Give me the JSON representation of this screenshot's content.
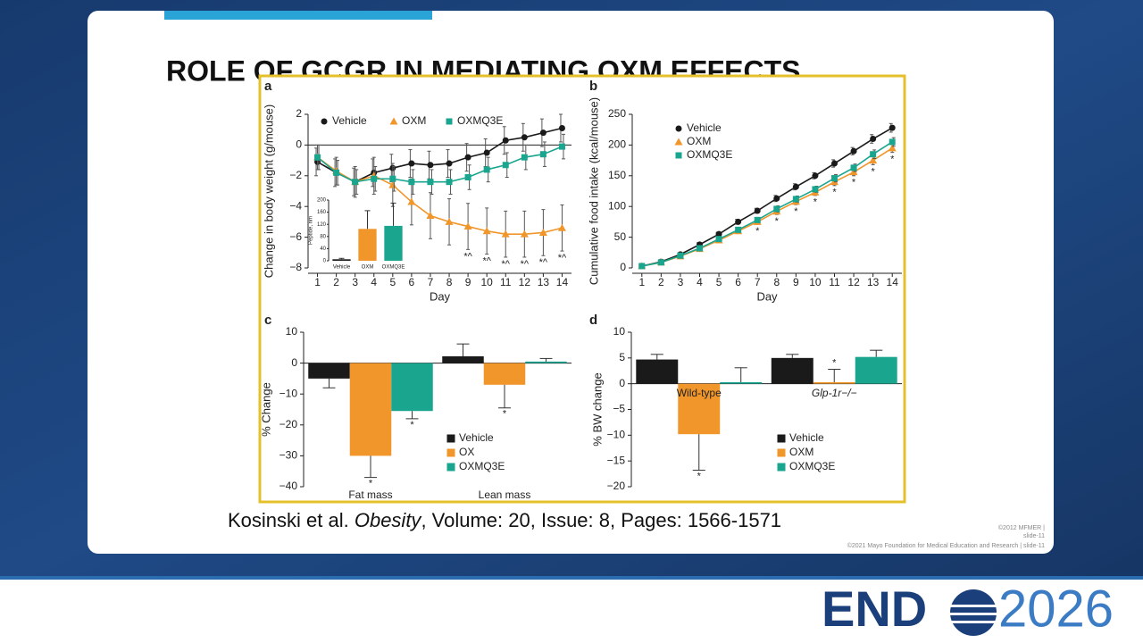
{
  "slide": {
    "title": "ROLE OF GCGR IN MEDIATING OXM EFFECTS",
    "citation": {
      "authors": "Kosinski et al. ",
      "journal": "Obesity",
      "details": ", Volume: 20, Issue: 8, Pages: 1566-1571"
    },
    "footer": [
      "©2012 MFMER  |",
      "slide-11",
      "©2021 Mayo Foundation for Medical Education and Research  |  slide-11"
    ],
    "logo": {
      "left": "END",
      "right": "2026"
    }
  },
  "chart_data": [
    {
      "panel": "a",
      "type": "line",
      "ylabel": "Change in body weight (g/mouse)",
      "xlabel": "Day",
      "x": [
        1,
        2,
        3,
        4,
        5,
        6,
        7,
        8,
        9,
        10,
        11,
        12,
        13,
        14
      ],
      "xlim": [
        0.5,
        14.5
      ],
      "ylim": [
        -8,
        2
      ],
      "yticks": [
        {
          "value": -8,
          "label": "−8"
        },
        {
          "value": -6,
          "label": "−6"
        },
        {
          "value": -4,
          "label": "−4"
        },
        {
          "value": -2,
          "label": "−2"
        },
        0,
        2
      ],
      "legend": "top",
      "series": [
        {
          "name": "Vehicle",
          "color": "#1a1a1a",
          "marker": "circle",
          "values": [
            -1.1,
            -1.8,
            -2.4,
            -1.8,
            -1.5,
            -1.2,
            -1.3,
            -1.2,
            -0.8,
            -0.5,
            0.3,
            0.5,
            0.8,
            1.1
          ],
          "errors": [
            0.9,
            0.9,
            0.9,
            0.9,
            0.9,
            0.9,
            0.9,
            0.9,
            0.9,
            0.9,
            0.9,
            0.9,
            0.9,
            0.9
          ]
        },
        {
          "name": "OXM",
          "color": "#f0962a",
          "marker": "triangle",
          "values": [
            -0.8,
            -1.7,
            -2.4,
            -2.0,
            -2.6,
            -3.7,
            -4.6,
            -5.0,
            -5.3,
            -5.6,
            -5.8,
            -5.8,
            -5.7,
            -5.4
          ],
          "errors": [
            0.8,
            0.9,
            1.0,
            1.2,
            1.4,
            1.5,
            1.5,
            1.5,
            1.5,
            1.5,
            1.5,
            1.5,
            1.5,
            1.5
          ],
          "markers": [
            null,
            null,
            null,
            null,
            null,
            null,
            null,
            null,
            "*^",
            "*^",
            "*^",
            "*^",
            "*^",
            "*^"
          ]
        },
        {
          "name": "OXMQ3E",
          "color": "#1aa58f",
          "marker": "square",
          "values": [
            -0.8,
            -1.8,
            -2.4,
            -2.2,
            -2.2,
            -2.4,
            -2.4,
            -2.4,
            -2.1,
            -1.6,
            -1.3,
            -0.8,
            -0.6,
            -0.1
          ],
          "errors": [
            0.8,
            0.8,
            0.8,
            0.8,
            0.8,
            0.8,
            0.8,
            0.8,
            0.8,
            0.8,
            0.8,
            0.8,
            0.8,
            0.8
          ]
        }
      ]
    },
    {
      "type": "bar",
      "ylabel": "Peptide, nm",
      "categories": [
        "Vehicle",
        "OXM",
        "OXMQ3E"
      ],
      "values": [
        5,
        105,
        115
      ],
      "errors": [
        3,
        60,
        75
      ],
      "colors": [
        "#1a1a1a",
        "#f0962a",
        "#1aa58f"
      ],
      "ylim": [
        0,
        200
      ],
      "yticks": [
        0,
        40,
        80,
        120,
        160,
        200
      ]
    },
    {
      "panel": "b",
      "type": "line",
      "ylabel": "Cumulative food intake (kcal/mouse)",
      "xlabel": "Day",
      "x": [
        1,
        2,
        3,
        4,
        5,
        6,
        7,
        8,
        9,
        10,
        11,
        12,
        13,
        14
      ],
      "xlim": [
        0.5,
        14.5
      ],
      "ylim": [
        0,
        250
      ],
      "yticks": [
        0,
        50,
        100,
        150,
        200,
        250
      ],
      "legend": "upper left",
      "series": [
        {
          "name": "Vehicle",
          "color": "#1a1a1a",
          "marker": "circle",
          "values": [
            3,
            10,
            22,
            38,
            55,
            75,
            93,
            113,
            132,
            150,
            170,
            190,
            210,
            228
          ],
          "errors": [
            2,
            2,
            2,
            3,
            3,
            4,
            4,
            5,
            5,
            5,
            6,
            6,
            7,
            7
          ]
        },
        {
          "name": "OXM",
          "color": "#f0962a",
          "marker": "triangle",
          "values": [
            3,
            9,
            19,
            31,
            45,
            60,
            75,
            92,
            108,
            123,
            140,
            156,
            175,
            195
          ],
          "errors": [
            2,
            2,
            2,
            3,
            3,
            4,
            4,
            5,
            5,
            5,
            6,
            6,
            7,
            7
          ],
          "markers": [
            null,
            null,
            null,
            null,
            null,
            null,
            "*",
            "*",
            "*",
            "*",
            "*",
            "*",
            "*",
            "*"
          ]
        },
        {
          "name": "OXMQ3E",
          "color": "#1aa58f",
          "marker": "square",
          "values": [
            3,
            9,
            20,
            32,
            47,
            62,
            78,
            96,
            112,
            128,
            146,
            163,
            185,
            205
          ],
          "errors": [
            2,
            2,
            2,
            3,
            3,
            4,
            4,
            5,
            5,
            5,
            6,
            6,
            7,
            7
          ]
        }
      ]
    },
    {
      "panel": "c",
      "type": "bar",
      "ylabel": "% Change",
      "categories": [
        "Fat mass",
        "Lean mass"
      ],
      "ylim": [
        -40,
        10
      ],
      "yticks": [
        {
          "value": -40,
          "label": "−40"
        },
        {
          "value": -30,
          "label": "−30"
        },
        {
          "value": -20,
          "label": "−20"
        },
        {
          "value": -10,
          "label": "−10"
        },
        0,
        10
      ],
      "legend": "lower right",
      "series": [
        {
          "name": "Vehicle",
          "color": "#1a1a1a",
          "values": [
            -5,
            2.2
          ],
          "errors": [
            3,
            4
          ]
        },
        {
          "name": "OX",
          "color": "#f0962a",
          "values": [
            -30,
            -7
          ],
          "errors": [
            7,
            7.5
          ],
          "markers": [
            "*",
            "*"
          ]
        },
        {
          "name": "OXMQ3E",
          "color": "#1aa58f",
          "values": [
            -15.5,
            0.5
          ],
          "errors": [
            2.5,
            1
          ],
          "markers": [
            "*",
            null
          ]
        }
      ]
    },
    {
      "panel": "d",
      "type": "bar",
      "ylabel": "% BW change",
      "categories": [
        "Wild-type",
        "Glp-1r−/−"
      ],
      "ylim": [
        -20,
        10
      ],
      "yticks": [
        {
          "value": -20,
          "label": "−20"
        },
        {
          "value": -15,
          "label": "−15"
        },
        {
          "value": -10,
          "label": "−10"
        },
        {
          "value": -5,
          "label": "−5"
        },
        0,
        5,
        10
      ],
      "legend": "lower right",
      "series": [
        {
          "name": "Vehicle",
          "color": "#1a1a1a",
          "values": [
            4.7,
            5
          ],
          "errors": [
            1,
            0.7
          ]
        },
        {
          "name": "OXM",
          "color": "#f0962a",
          "values": [
            -9.8,
            0.3
          ],
          "errors": [
            7,
            2.5
          ],
          "markers": [
            "*",
            "*"
          ]
        },
        {
          "name": "OXMQ3E",
          "color": "#1aa58f",
          "values": [
            0.3,
            5.2
          ],
          "errors": [
            2.8,
            1.3
          ]
        }
      ]
    }
  ]
}
